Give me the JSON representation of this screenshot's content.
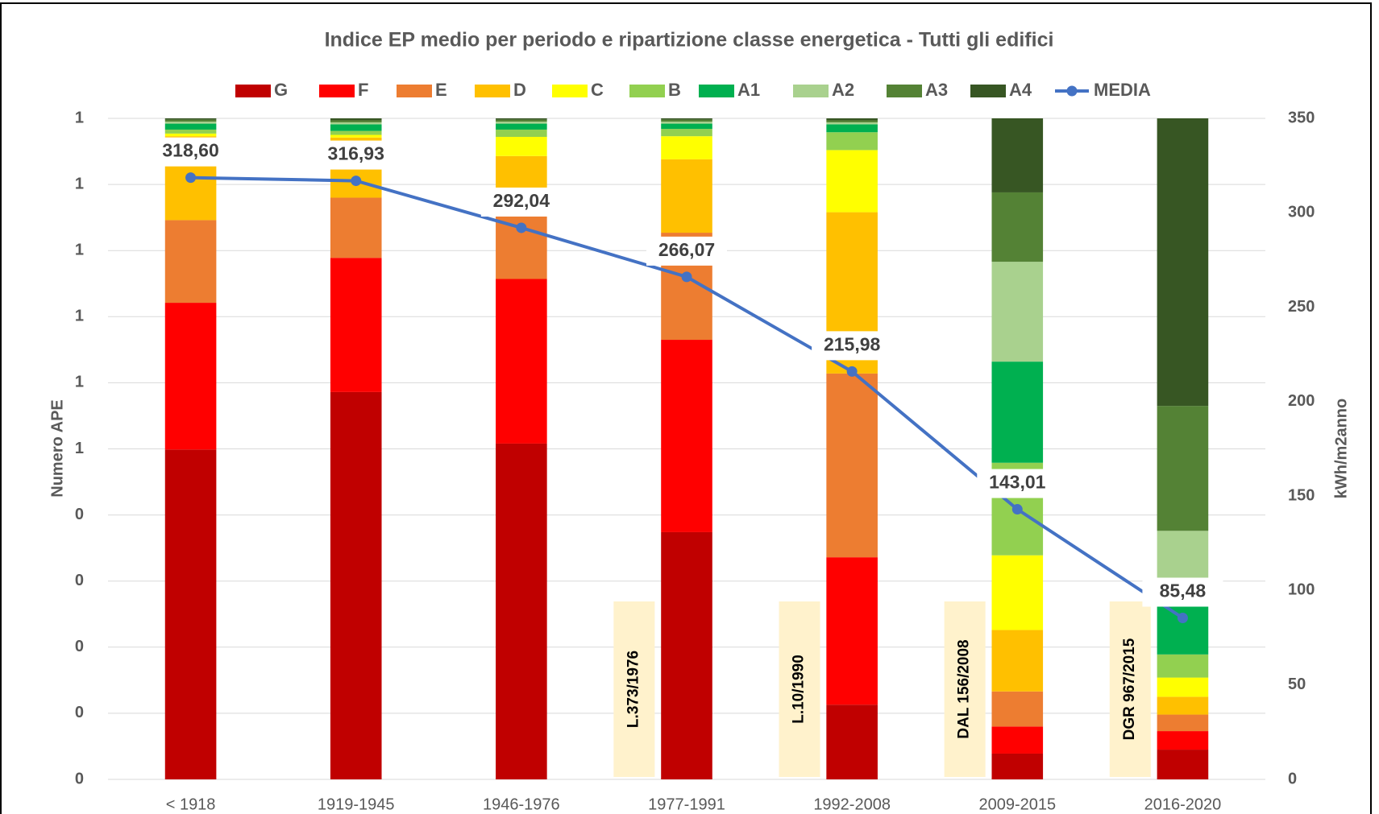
{
  "chart_data": {
    "type": "stacked_bar_line",
    "title": "Indice EP medio per periodo e ripartizione classe energetica - Tutti gli edifici",
    "y_label": "Numero APE",
    "y2_label": "kWh/m2anno",
    "categories": [
      "< 1918",
      "1919-1945",
      "1946-1976",
      "1977-1991",
      "1992-2008",
      "2009-2015",
      "2016-2020"
    ],
    "series": [
      {
        "name": "G",
        "color": "#c00000",
        "values": [
          0.499,
          0.586,
          0.508,
          0.374,
          0.113,
          0.039,
          0.045
        ]
      },
      {
        "name": "F",
        "color": "#ff0000",
        "values": [
          0.222,
          0.203,
          0.249,
          0.291,
          0.223,
          0.041,
          0.028
        ]
      },
      {
        "name": "E",
        "color": "#ed7d31",
        "values": [
          0.125,
          0.091,
          0.095,
          0.162,
          0.278,
          0.053,
          0.025
        ]
      },
      {
        "name": "D",
        "color": "#ffc000",
        "values": [
          0.127,
          0.091,
          0.091,
          0.111,
          0.244,
          0.093,
          0.027
        ]
      },
      {
        "name": "C",
        "color": "#ffff00",
        "values": [
          0.004,
          0.004,
          0.029,
          0.035,
          0.094,
          0.113,
          0.029
        ]
      },
      {
        "name": "B",
        "color": "#92d050",
        "values": [
          0.006,
          0.006,
          0.011,
          0.011,
          0.027,
          0.14,
          0.035
        ]
      },
      {
        "name": "A1",
        "color": "#00b050",
        "values": [
          0.009,
          0.01,
          0.009,
          0.008,
          0.012,
          0.153,
          0.1
        ]
      },
      {
        "name": "A2",
        "color": "#a9d18e",
        "values": [
          0.003,
          0.003,
          0.003,
          0.003,
          0.003,
          0.151,
          0.087
        ]
      },
      {
        "name": "A3",
        "color": "#548235",
        "values": [
          0.003,
          0.003,
          0.003,
          0.003,
          0.003,
          0.105,
          0.189
        ]
      },
      {
        "name": "A4",
        "color": "#375623",
        "values": [
          0.002,
          0.003,
          0.002,
          0.002,
          0.003,
          0.112,
          0.435
        ]
      },
      {
        "name": "MEDIA",
        "color": "#4472c4",
        "axis": "y2",
        "values": [
          318.6,
          316.93,
          292.04,
          266.07,
          215.98,
          143.01,
          85.48
        ],
        "value_labels": [
          "318,60",
          "316,93",
          "292,04",
          "266,07",
          "215,98",
          "143,01",
          "85,48"
        ]
      }
    ],
    "ylim": [
      0,
      1
    ],
    "yticks": [
      0,
      {
        "value": 0.1,
        "label": "0"
      },
      {
        "value": 0.2,
        "label": "0"
      },
      {
        "value": 0.3,
        "label": "0"
      },
      {
        "value": 0.4,
        "label": "0"
      },
      {
        "value": 0.5,
        "label": "1"
      },
      {
        "value": 0.6,
        "label": "1"
      },
      {
        "value": 0.7,
        "label": "1"
      },
      {
        "value": 0.8,
        "label": "1"
      },
      {
        "value": 0.9,
        "label": "1"
      },
      1
    ],
    "y2lim": [
      0,
      350
    ],
    "y2ticks": [
      0,
      50,
      100,
      150,
      200,
      250,
      300,
      350
    ],
    "grid": true,
    "legend": "top",
    "annotations": [
      {
        "text": "L.373/1976",
        "category": 3
      },
      {
        "text": "L.10/1990",
        "category": 4
      },
      {
        "text": "DAL 156/2008",
        "category": 5
      },
      {
        "text": "DGR 967/2015",
        "category": 6
      }
    ]
  }
}
